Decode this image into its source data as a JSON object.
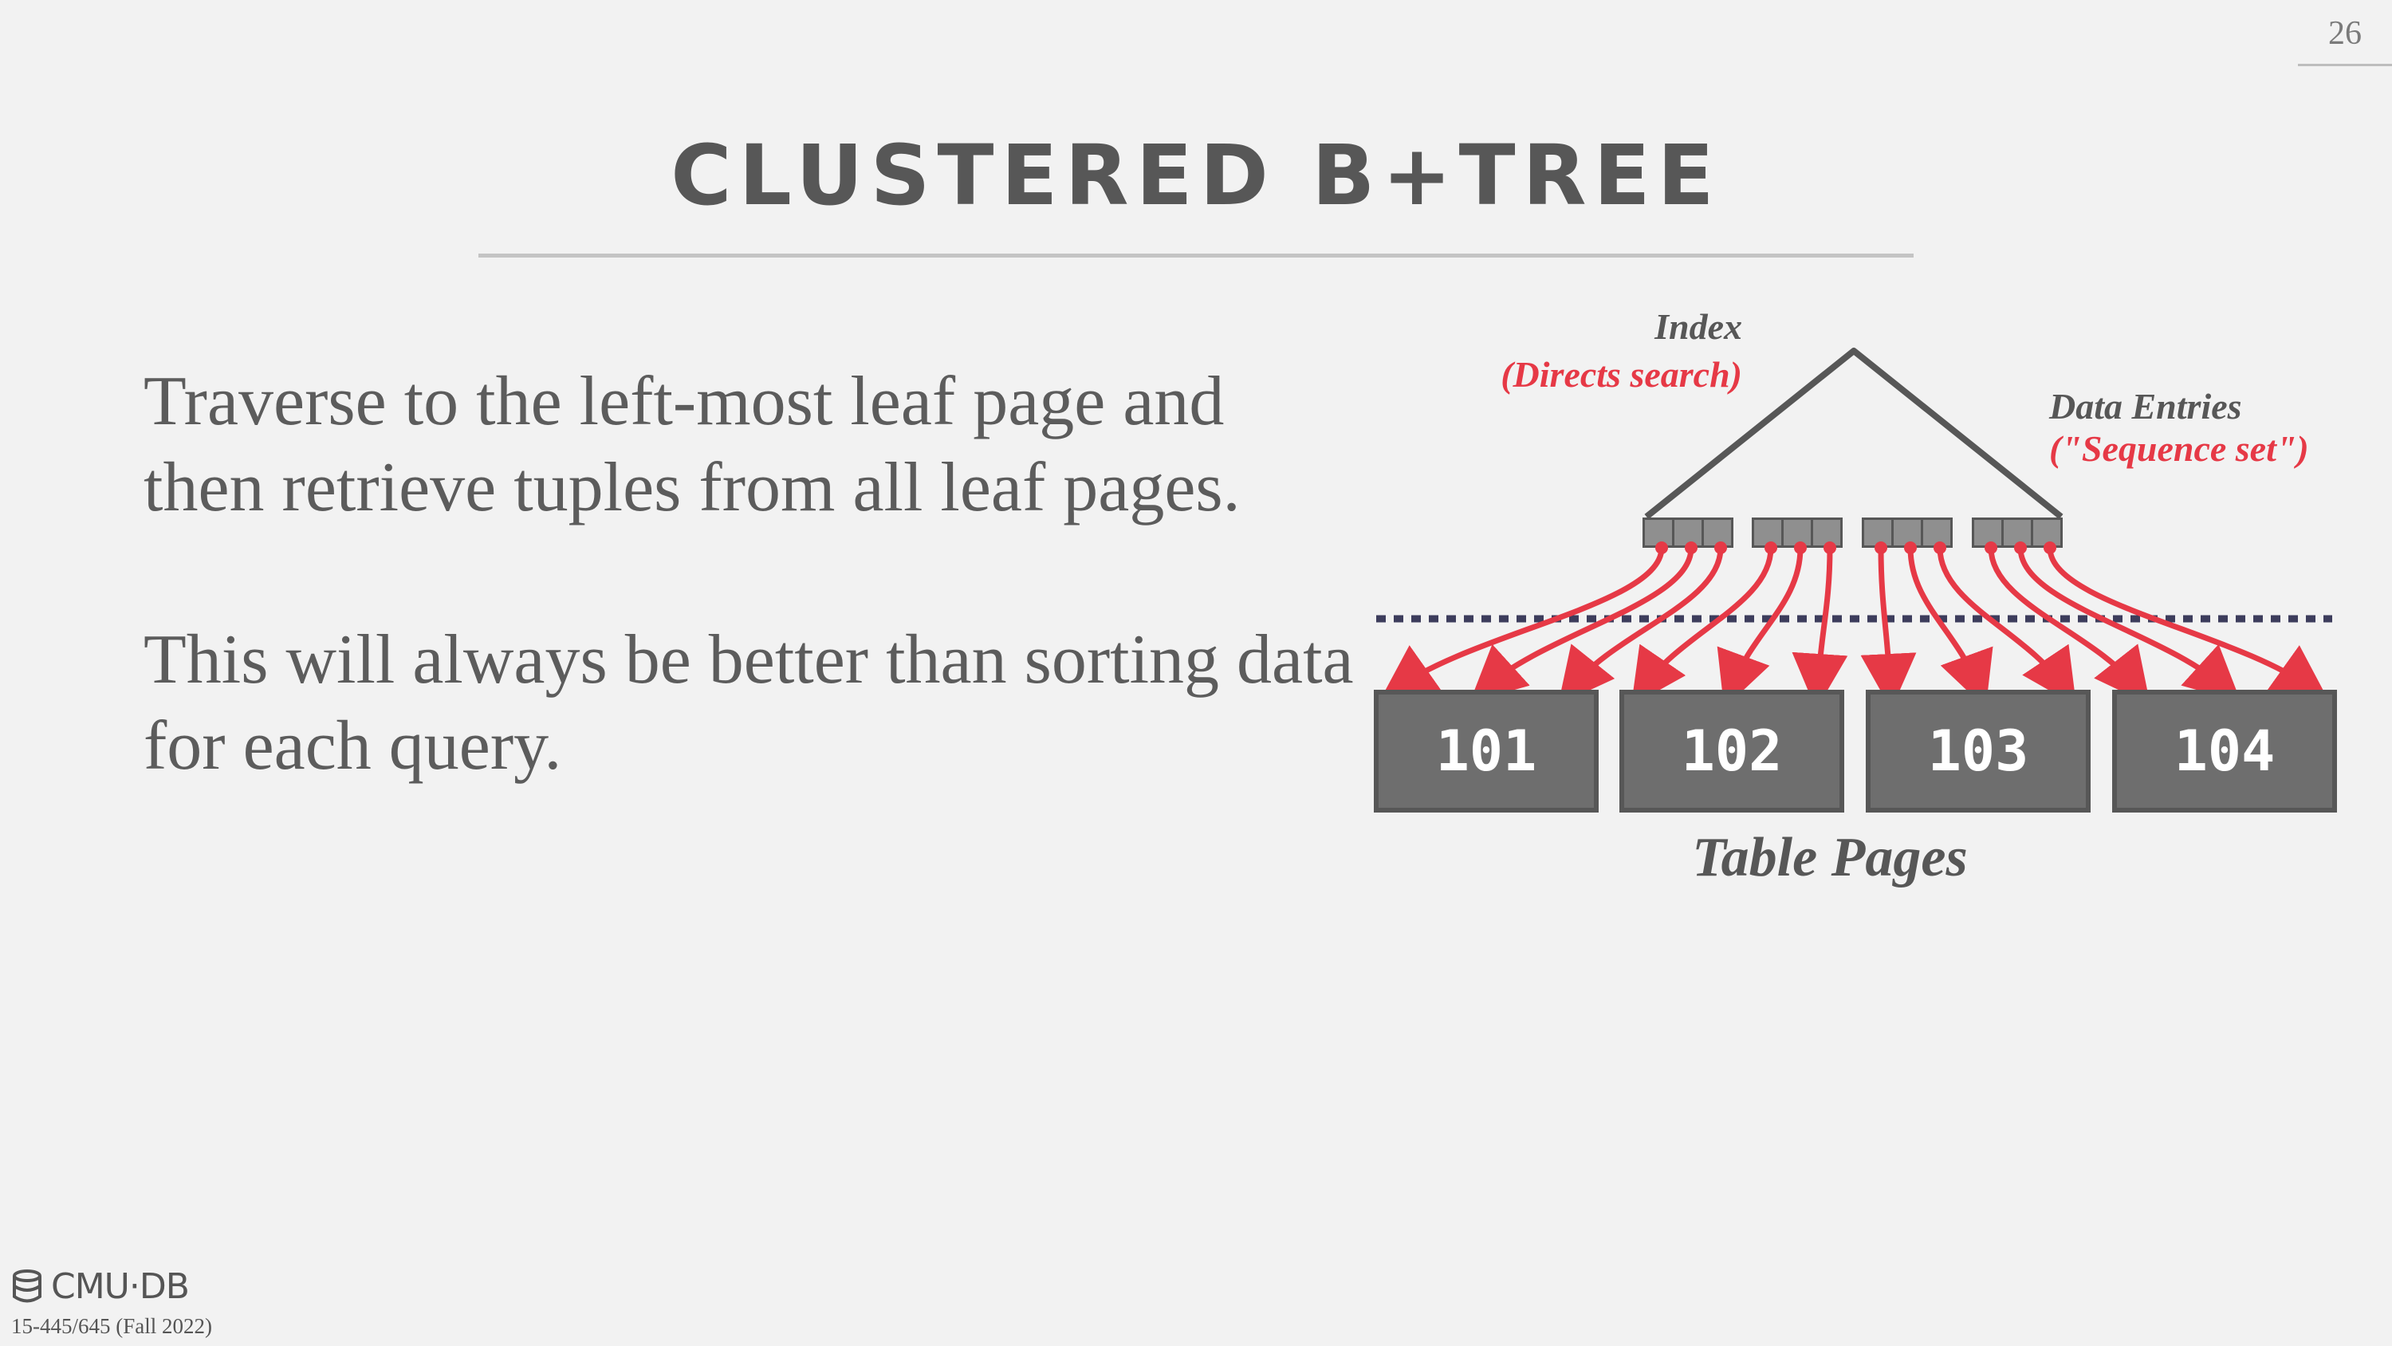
{
  "slide": {
    "page_number": "26",
    "title": "CLUSTERED B+TREE",
    "paragraphs": [
      "Traverse to the left-most leaf page and then retrieve tuples from all leaf pages.",
      "This will always be better than sorting data for each query."
    ]
  },
  "diagram": {
    "index_label": "Index",
    "index_sublabel": "(Directs search)",
    "data_entries_label": "Data Entries",
    "data_entries_sublabel": "(\"Sequence set\")",
    "pages": [
      "101",
      "102",
      "103",
      "104"
    ],
    "pages_caption": "Table Pages",
    "colors": {
      "arrow": "#e63946",
      "tree_stroke": "#575757",
      "page_fill": "#6e6e6e",
      "dotted_line": "#3d3d5c"
    }
  },
  "footer": {
    "logo_text": "CMU·DB",
    "course": "15-445/645 (Fall 2022)"
  }
}
